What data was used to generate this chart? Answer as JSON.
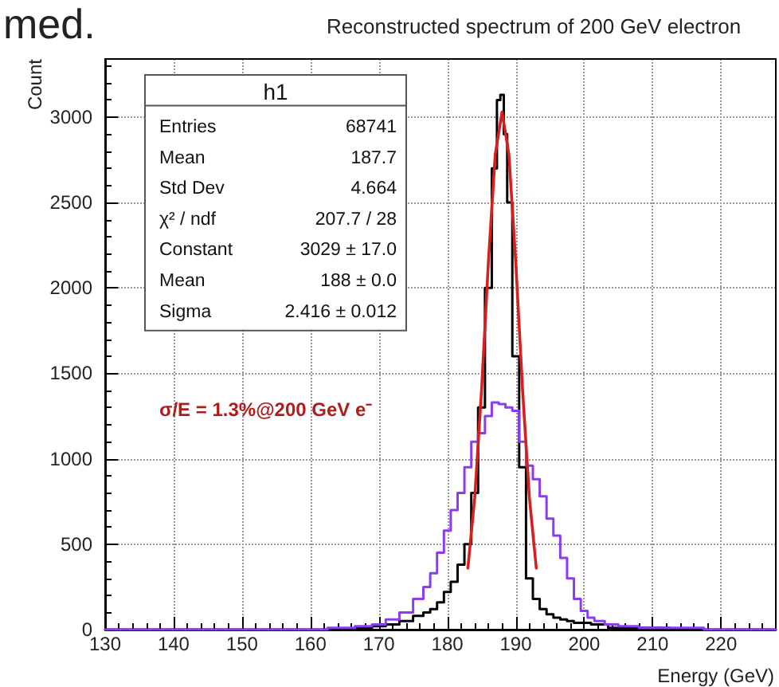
{
  "chart_data": {
    "type": "step",
    "title": "Reconstructed spectrum of 200 GeV electron",
    "xlabel": "Energy (GeV)",
    "ylabel": "Count",
    "xlim": [
      130,
      228
    ],
    "ylim": [
      0,
      3340
    ],
    "xticks": [
      130,
      140,
      150,
      160,
      170,
      180,
      190,
      200,
      210,
      220
    ],
    "yticks": [
      0,
      500,
      1000,
      1500,
      2000,
      2500,
      3000
    ],
    "grid": true,
    "marker": "none",
    "annotations": [
      "h1",
      "Entries",
      "68741",
      "Mean",
      "187.7",
      "Std Dev",
      "4.664",
      "χ² / ndf",
      "207.7 / 28",
      "Constant",
      "3029 ± 17.0",
      "Mean",
      "188 ± 0.0",
      "Sigma",
      "2.416 ± 0.012",
      "σ/E = 1.3%@200 GeV e⁻",
      "med."
    ],
    "series": [
      {
        "type": "step",
        "color": "#000000",
        "x": [
          130,
          165,
          168,
          170,
          172,
          174,
          176,
          177,
          178,
          179,
          180,
          181,
          182,
          183,
          184,
          185,
          186,
          187,
          187.5,
          188,
          188.5,
          189,
          190,
          191,
          192,
          193,
          194,
          195,
          196,
          197,
          198,
          199,
          200,
          202,
          205,
          210,
          215,
          220,
          228
        ],
        "values": [
          0,
          0,
          10,
          20,
          30,
          50,
          80,
          100,
          120,
          160,
          220,
          280,
          380,
          500,
          800,
          1300,
          2000,
          2700,
          3100,
          3130,
          2900,
          2500,
          1600,
          950,
          300,
          180,
          120,
          90,
          70,
          60,
          50,
          40,
          40,
          30,
          10,
          10,
          0,
          0,
          0
        ]
      },
      {
        "type": "step",
        "color": "#8b3cf0",
        "x": [
          130,
          160,
          165,
          168,
          170,
          172,
          174,
          176,
          177,
          178,
          179,
          180,
          181,
          182,
          183,
          184,
          185,
          186,
          187,
          188,
          189,
          190,
          191,
          192,
          193,
          194,
          195,
          196,
          197,
          198,
          199,
          200,
          201,
          202,
          204,
          206,
          210,
          215,
          220,
          228
        ],
        "values": [
          0,
          0,
          10,
          20,
          30,
          60,
          100,
          180,
          250,
          330,
          450,
          580,
          700,
          800,
          950,
          1100,
          1150,
          1250,
          1330,
          1320,
          1300,
          1280,
          1100,
          960,
          880,
          780,
          650,
          550,
          420,
          300,
          180,
          110,
          70,
          50,
          30,
          20,
          10,
          10,
          0,
          0
        ]
      },
      {
        "type": "line",
        "color": "#d62020",
        "x": [
          183,
          184,
          185,
          186,
          187,
          188,
          189,
          190,
          191,
          192,
          193
        ],
        "values": [
          360,
          770,
          1400,
          2150,
          2780,
          3030,
          2780,
          2150,
          1400,
          770,
          360
        ]
      }
    ]
  }
}
